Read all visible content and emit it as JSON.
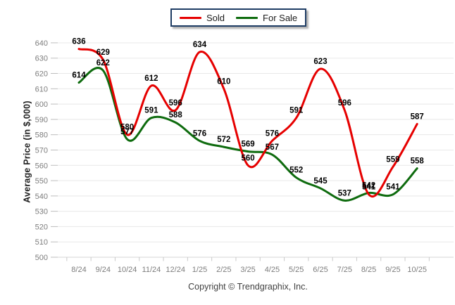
{
  "chart_data": {
    "type": "line",
    "title": "",
    "xlabel": "",
    "ylabel": "Average Price (in $,000)",
    "categories": [
      "8/24",
      "9/24",
      "10/24",
      "11/24",
      "12/24",
      "1/25",
      "2/25",
      "3/25",
      "4/25",
      "5/25",
      "6/25",
      "7/25",
      "8/25",
      "9/25",
      "10/25"
    ],
    "series": [
      {
        "name": "Sold",
        "color": "#e60000",
        "values": [
          636,
          629,
          580,
          612,
          596,
          634,
          610,
          560,
          576,
          591,
          623,
          596,
          541,
          559,
          587
        ]
      },
      {
        "name": "For Sale",
        "color": "#0e6b0e",
        "values": [
          614,
          622,
          577,
          591,
          588,
          576,
          572,
          569,
          567,
          552,
          545,
          537,
          542,
          541,
          558
        ]
      }
    ],
    "ylim": [
      500,
      640
    ],
    "ytick_step": 10,
    "y_ticks": [
      500,
      510,
      520,
      530,
      540,
      550,
      560,
      570,
      580,
      590,
      600,
      610,
      620,
      630,
      640
    ],
    "grid": true,
    "legend_position": "top-center",
    "data_labels": true,
    "line_style": "smooth-spline"
  },
  "legend": {
    "border_color": "#1e3c64"
  },
  "footer": {
    "copyright": "Copyright © Trendgraphix, Inc."
  },
  "style_colors": {
    "gridline": "#e8e8e8",
    "axis_line": "#d6d6d6",
    "tick_label": "#7d7d7d",
    "data_label": "#000000"
  }
}
